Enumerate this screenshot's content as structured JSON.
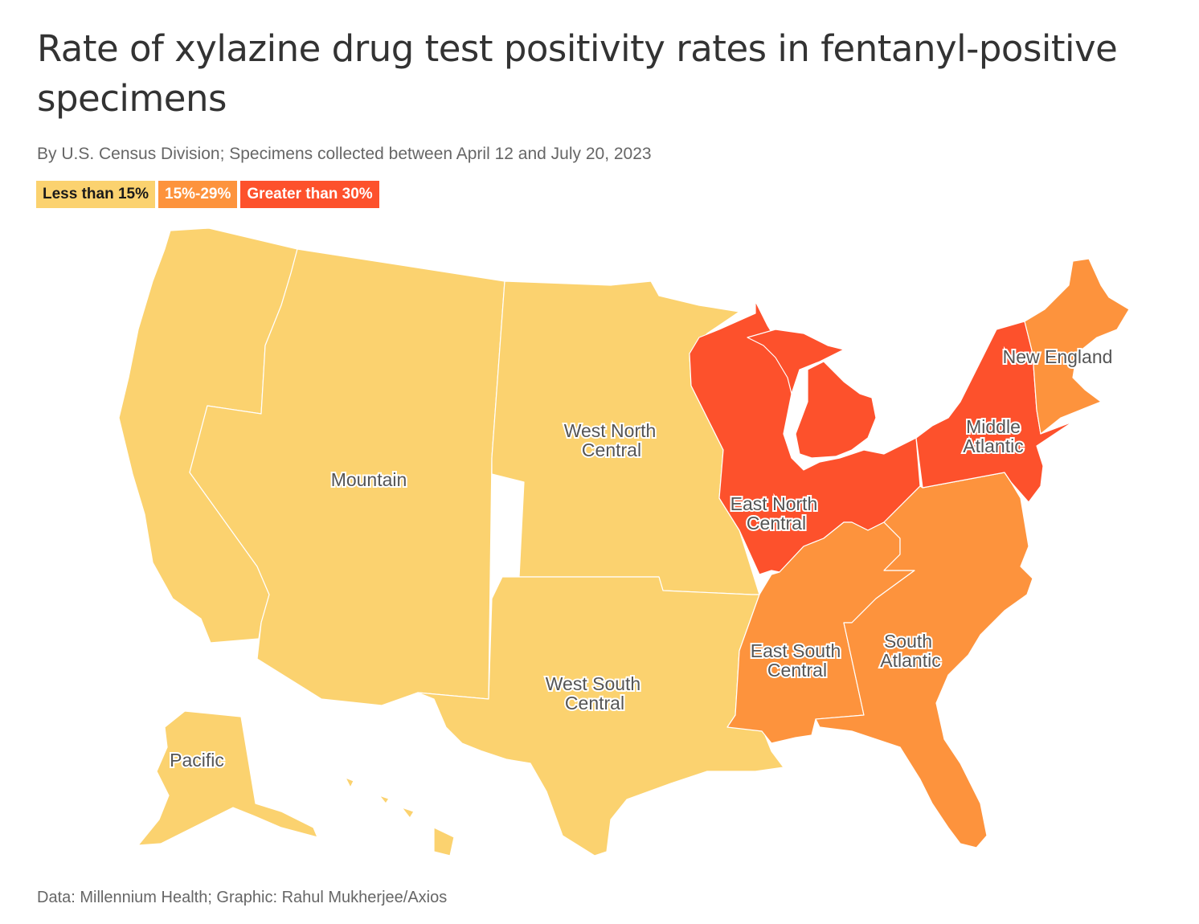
{
  "title": "Rate of xylazine drug test positivity rates in fentanyl-positive specimens",
  "subtitle": "By U.S. Census Division; Specimens collected between April 12 and July 20, 2023",
  "legend": [
    {
      "label": "Less than 15%",
      "color": "#fbd26f",
      "text_color": "#1a1a1a"
    },
    {
      "label": "15%-29%",
      "color": "#fd933d",
      "text_color": "#ffffff"
    },
    {
      "label": "Greater than 30%",
      "color": "#fd512c",
      "text_color": "#ffffff"
    }
  ],
  "regions": {
    "pacific": {
      "name": "Pacific",
      "category": "Less than 15%",
      "color": "#fbd26f"
    },
    "mountain": {
      "name": "Mountain",
      "category": "Less than 15%",
      "color": "#fbd26f"
    },
    "west_north_central": {
      "name_line1": "West North",
      "name_line2": "Central",
      "category": "Less than 15%",
      "color": "#fbd26f"
    },
    "west_south_central": {
      "name_line1": "West South",
      "name_line2": "Central",
      "category": "Less than 15%",
      "color": "#fbd26f"
    },
    "east_north_central": {
      "name_line1": "East North",
      "name_line2": "Central",
      "category": "Greater than 30%",
      "color": "#fd512c"
    },
    "middle_atlantic": {
      "name_line1": "Middle",
      "name_line2": "Atlantic",
      "category": "Greater than 30%",
      "color": "#fd512c"
    },
    "new_england": {
      "name": "New England",
      "category": "15%-29%",
      "color": "#fd933d"
    },
    "east_south_central": {
      "name_line1": "East South",
      "name_line2": "Central",
      "category": "15%-29%",
      "color": "#fd933d"
    },
    "south_atlantic": {
      "name_line1": "South",
      "name_line2": "Atlantic",
      "category": "15%-29%",
      "color": "#fd933d"
    }
  },
  "source": "Data: Millennium Health; Graphic: Rahul Mukherjee/Axios"
}
